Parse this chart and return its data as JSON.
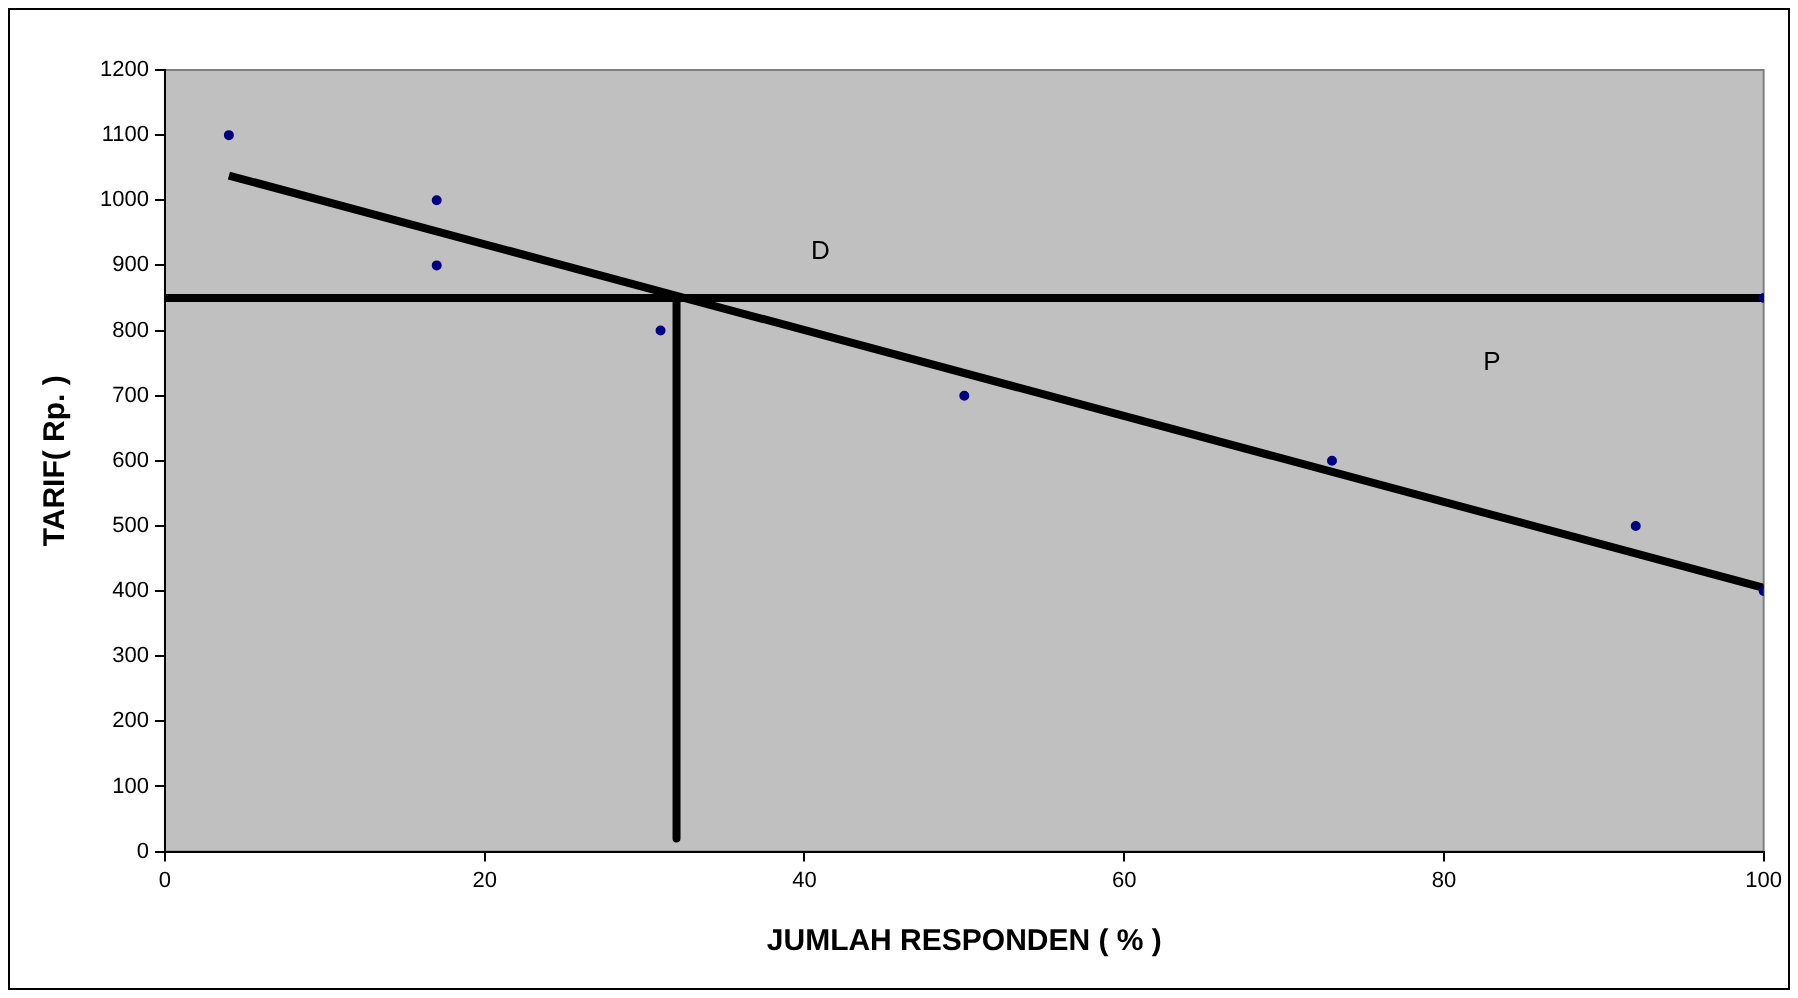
{
  "chart_data": {
    "type": "scatter",
    "xlabel": "JUMLAH RESPONDEN ( % )",
    "ylabel": "TARIF( Rp. )",
    "xlim": [
      0,
      100
    ],
    "xticks": [
      0,
      20,
      40,
      60,
      80,
      100
    ],
    "ylim": [
      0,
      1200
    ],
    "yticks": [
      0,
      100,
      200,
      300,
      400,
      500,
      600,
      700,
      800,
      900,
      1000,
      1100,
      1200
    ],
    "grid": false,
    "legend": false,
    "series": [
      {
        "color": "#000080",
        "marker": "circle",
        "x": [
          4,
          17,
          17,
          31,
          50,
          73,
          92,
          100,
          100
        ],
        "values": [
          1100,
          1000,
          900,
          800,
          700,
          600,
          500,
          400,
          850
        ]
      },
      {
        "type": "line",
        "color": "#000000",
        "marker": "none",
        "x": [
          4,
          100
        ],
        "values": [
          1038,
          405
        ]
      },
      {
        "type": "line",
        "color": "#000000",
        "marker": "none",
        "x": [
          32,
          32
        ],
        "values": [
          850,
          20
        ]
      }
    ],
    "ref_lines": [
      {
        "axis": "y",
        "value": 850,
        "color": "#000000"
      }
    ],
    "annotations": [
      "D",
      "P"
    ]
  }
}
